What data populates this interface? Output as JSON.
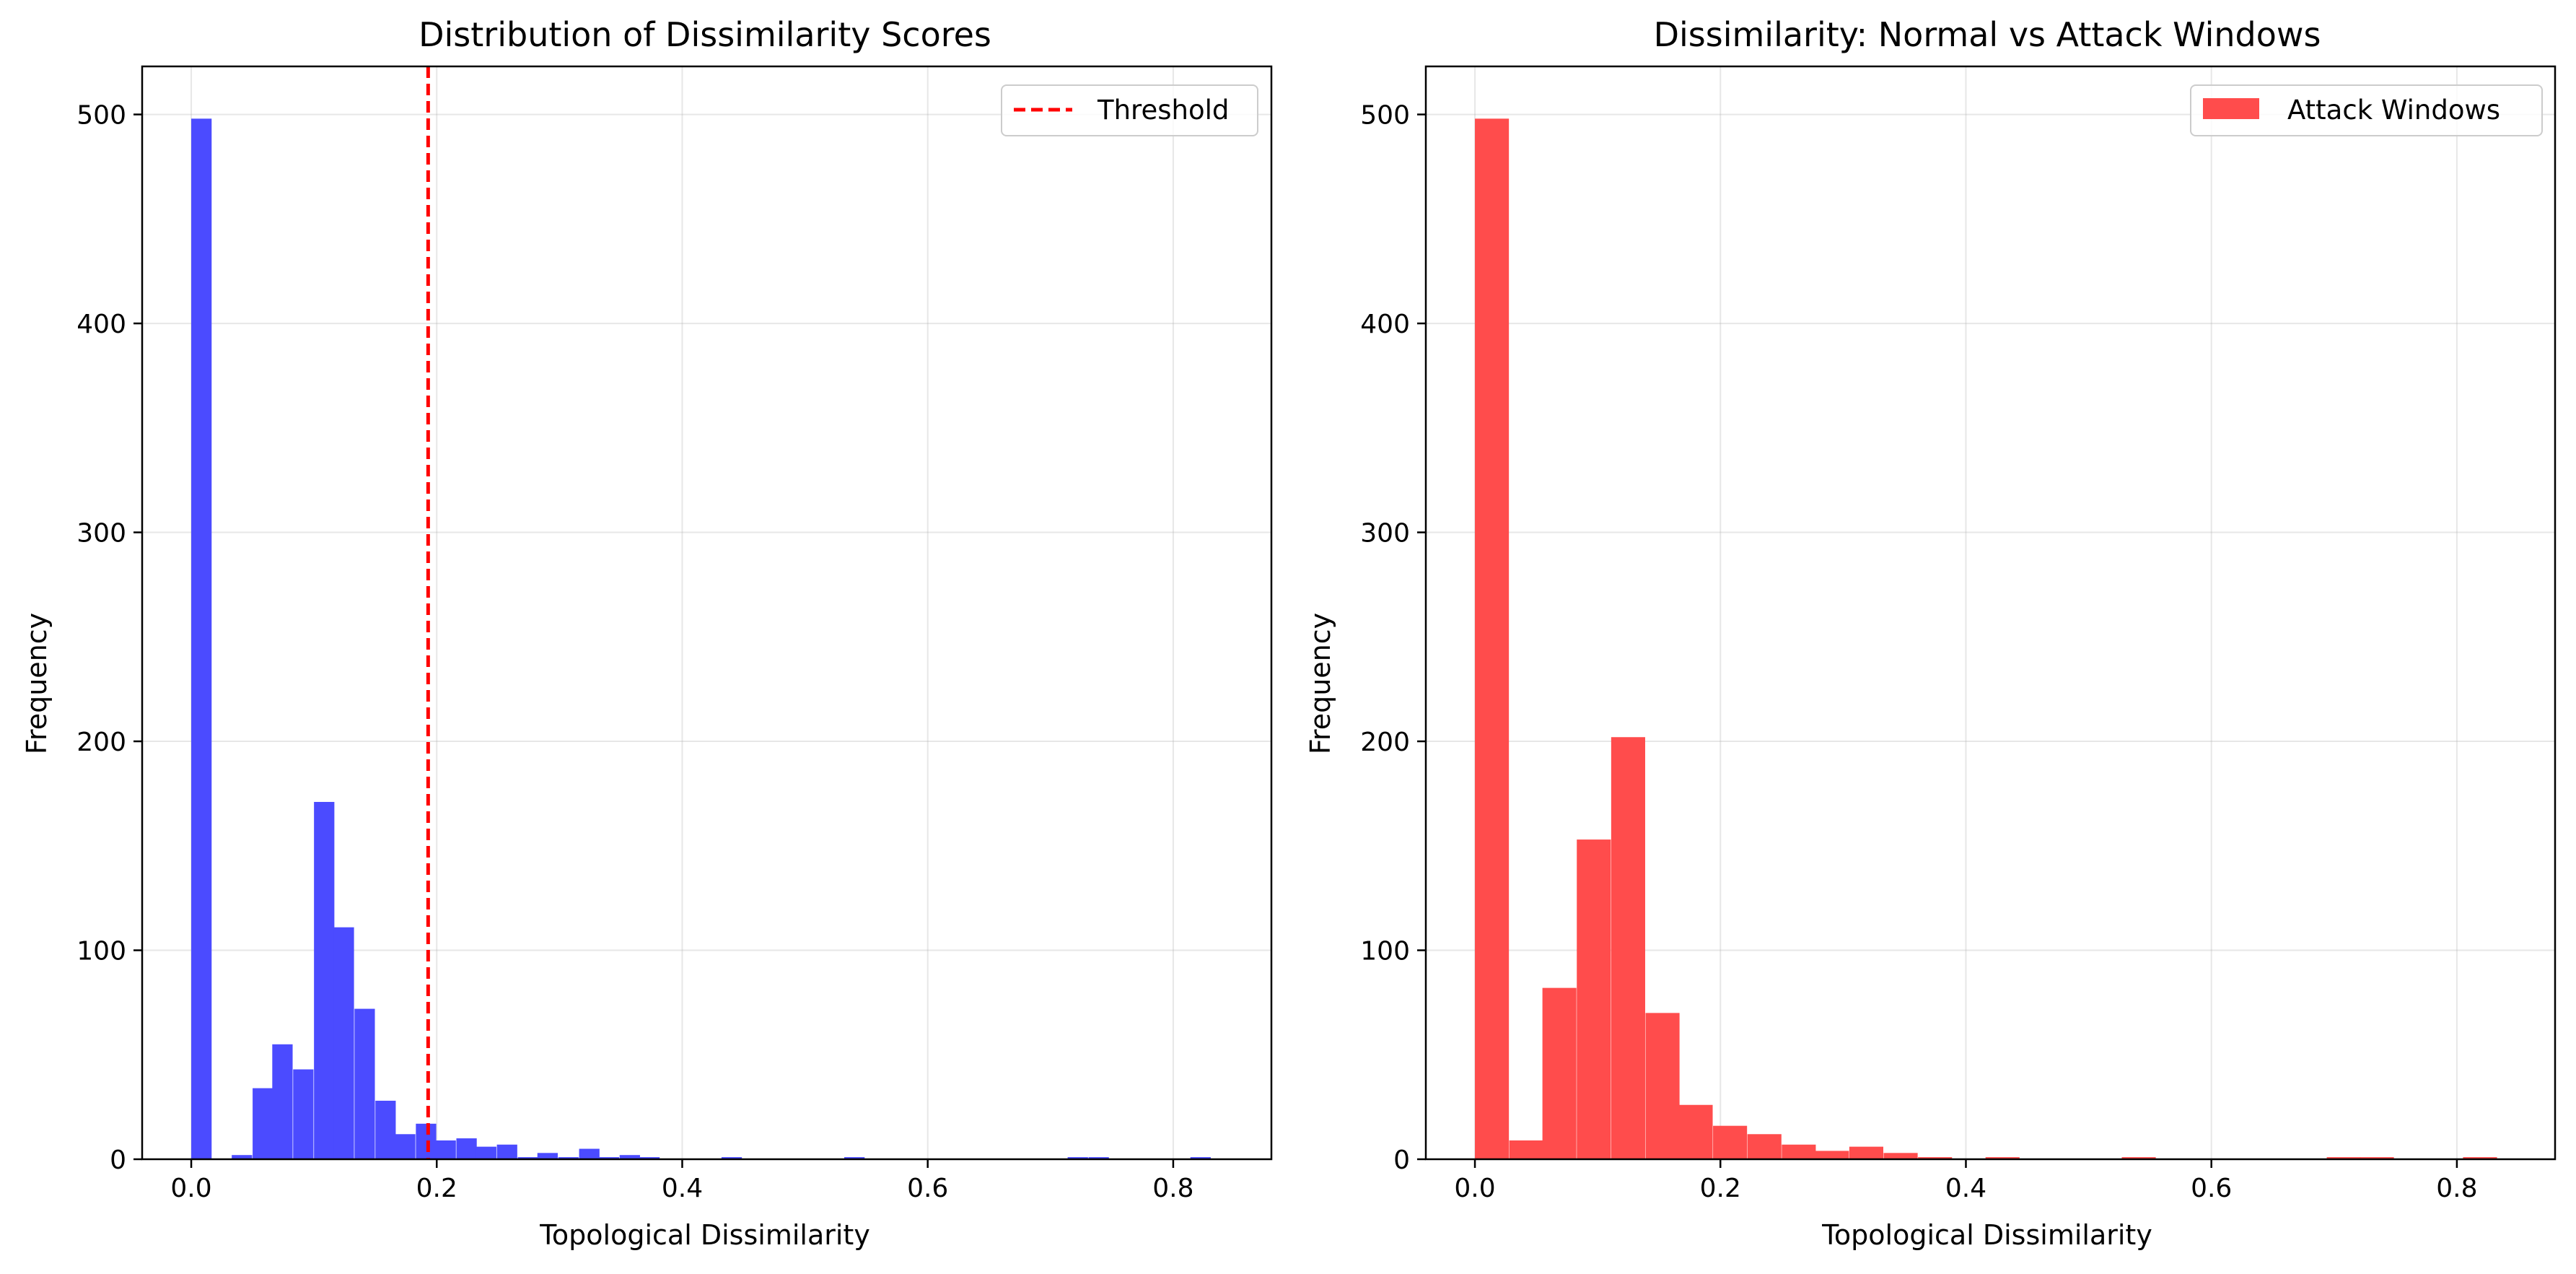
{
  "chart_data": [
    {
      "type": "bar",
      "title": "Distribution of Dissimilarity Scores",
      "xlabel": "Topological Dissimilarity",
      "ylabel": "Frequency",
      "xlim": [
        -0.04,
        0.88
      ],
      "ylim": [
        0,
        523
      ],
      "xticks": [
        0.0,
        0.2,
        0.4,
        0.6,
        0.8
      ],
      "xtick_labels": [
        "0.0",
        "0.2",
        "0.4",
        "0.6",
        "0.8"
      ],
      "yticks": [
        0,
        100,
        200,
        300,
        400,
        500
      ],
      "ytick_labels": [
        "0",
        "100",
        "200",
        "300",
        "400",
        "500"
      ],
      "grid": true,
      "legend_position": "top-right",
      "legend": [
        {
          "label": "Threshold",
          "style": "dashed-line",
          "color": "#ff0000"
        }
      ],
      "threshold": 0.193,
      "bar_color": "#4b4bff",
      "bin_width": 0.0166,
      "bins": [
        {
          "x": 0.0,
          "y": 498
        },
        {
          "x": 0.033,
          "y": 2
        },
        {
          "x": 0.05,
          "y": 34
        },
        {
          "x": 0.066,
          "y": 55
        },
        {
          "x": 0.083,
          "y": 43
        },
        {
          "x": 0.1,
          "y": 171
        },
        {
          "x": 0.116,
          "y": 111
        },
        {
          "x": 0.133,
          "y": 72
        },
        {
          "x": 0.15,
          "y": 28
        },
        {
          "x": 0.166,
          "y": 12
        },
        {
          "x": 0.183,
          "y": 17
        },
        {
          "x": 0.199,
          "y": 9
        },
        {
          "x": 0.216,
          "y": 10
        },
        {
          "x": 0.232,
          "y": 6
        },
        {
          "x": 0.249,
          "y": 7
        },
        {
          "x": 0.266,
          "y": 1
        },
        {
          "x": 0.282,
          "y": 3
        },
        {
          "x": 0.299,
          "y": 1
        },
        {
          "x": 0.316,
          "y": 5
        },
        {
          "x": 0.332,
          "y": 1
        },
        {
          "x": 0.349,
          "y": 2
        },
        {
          "x": 0.365,
          "y": 1
        },
        {
          "x": 0.432,
          "y": 1
        },
        {
          "x": 0.532,
          "y": 1
        },
        {
          "x": 0.714,
          "y": 1
        },
        {
          "x": 0.731,
          "y": 1
        },
        {
          "x": 0.814,
          "y": 1
        }
      ]
    },
    {
      "type": "bar",
      "title": "Dissimilarity: Normal vs Attack Windows",
      "xlabel": "Topological Dissimilarity",
      "ylabel": "Frequency",
      "xlim": [
        -0.04,
        0.88
      ],
      "ylim": [
        0,
        523
      ],
      "xticks": [
        0.0,
        0.2,
        0.4,
        0.6,
        0.8
      ],
      "xtick_labels": [
        "0.0",
        "0.2",
        "0.4",
        "0.6",
        "0.8"
      ],
      "yticks": [
        0,
        100,
        200,
        300,
        400,
        500
      ],
      "ytick_labels": [
        "0",
        "100",
        "200",
        "300",
        "400",
        "500"
      ],
      "grid": true,
      "legend_position": "top-right",
      "legend": [
        {
          "label": "Attack Windows",
          "style": "patch",
          "color": "#ff4c4c"
        }
      ],
      "bar_color": "#ff4c4c",
      "bin_width": 0.0277,
      "bins": [
        {
          "x": 0.0,
          "y": 498
        },
        {
          "x": 0.028,
          "y": 9
        },
        {
          "x": 0.055,
          "y": 82
        },
        {
          "x": 0.083,
          "y": 153
        },
        {
          "x": 0.111,
          "y": 202
        },
        {
          "x": 0.139,
          "y": 70
        },
        {
          "x": 0.166,
          "y": 26
        },
        {
          "x": 0.194,
          "y": 16
        },
        {
          "x": 0.222,
          "y": 12
        },
        {
          "x": 0.25,
          "y": 7
        },
        {
          "x": 0.277,
          "y": 4
        },
        {
          "x": 0.305,
          "y": 6
        },
        {
          "x": 0.333,
          "y": 3
        },
        {
          "x": 0.361,
          "y": 1
        },
        {
          "x": 0.416,
          "y": 1
        },
        {
          "x": 0.527,
          "y": 1
        },
        {
          "x": 0.694,
          "y": 1
        },
        {
          "x": 0.721,
          "y": 1
        },
        {
          "x": 0.805,
          "y": 1
        }
      ]
    }
  ]
}
